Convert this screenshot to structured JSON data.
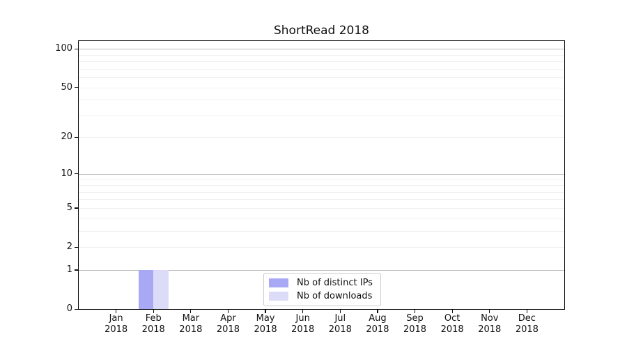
{
  "chart_data": {
    "type": "bar",
    "title": "ShortRead 2018",
    "categories": [
      "Jan",
      "Feb",
      "Mar",
      "Apr",
      "May",
      "Jun",
      "Jul",
      "Aug",
      "Sep",
      "Oct",
      "Nov",
      "Dec"
    ],
    "x_year": "2018",
    "series": [
      {
        "name": "Nb of distinct IPs",
        "color": "#a8a8f5",
        "values": [
          0,
          1,
          0,
          0,
          0,
          0,
          0,
          0,
          0,
          0,
          0,
          0
        ]
      },
      {
        "name": "Nb of downloads",
        "color": "#dcdcf8",
        "values": [
          0,
          1,
          0,
          0,
          0,
          0,
          0,
          0,
          0,
          0,
          0,
          0
        ]
      }
    ],
    "y_ticks": [
      0,
      1,
      2,
      5,
      10,
      20,
      50,
      100
    ],
    "scale": "log10(1+y)",
    "ylim": [
      0,
      115
    ],
    "grid": {
      "major_values": [
        1,
        10,
        100
      ],
      "minor_values": [
        2,
        3,
        4,
        5,
        6,
        7,
        8,
        9,
        20,
        30,
        40,
        50,
        60,
        70,
        80,
        90
      ],
      "major_color": "#bdbdbd",
      "minor_color": "#f0f0f0"
    },
    "legend_position": "lower center"
  }
}
